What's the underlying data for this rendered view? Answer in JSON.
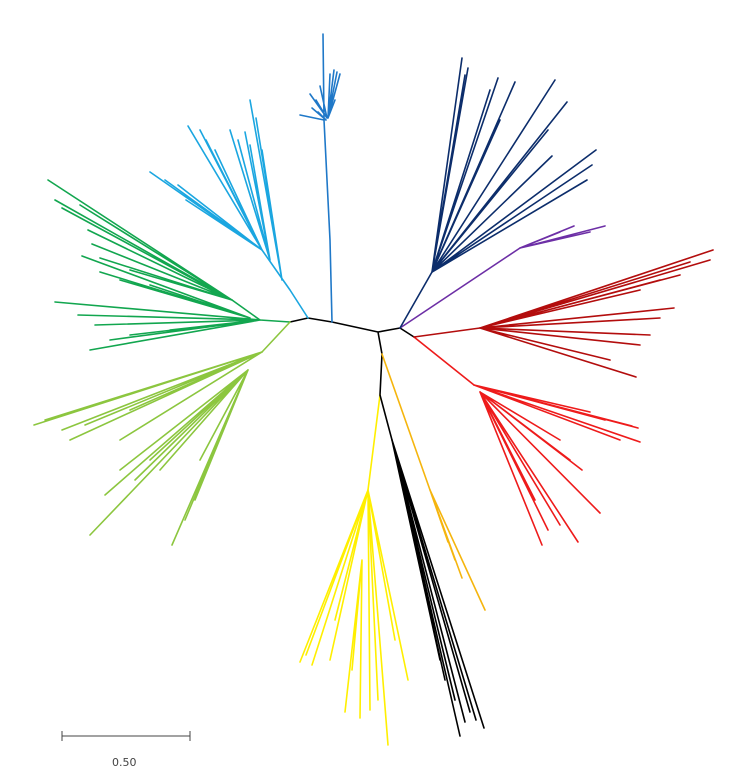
{
  "figure": {
    "type": "unrooted phylogenetic tree",
    "scale_bar": {
      "label": "0.50",
      "value": 0.5
    }
  },
  "clades": [
    {
      "id": "blue",
      "color": "#1f78c8"
    },
    {
      "id": "light-blue",
      "color": "#1ba6e0"
    },
    {
      "id": "green",
      "color": "#12a64f"
    },
    {
      "id": "light-green",
      "color": "#8cc63f"
    },
    {
      "id": "yellow",
      "color": "#ffef00"
    },
    {
      "id": "black",
      "color": "#000000"
    },
    {
      "id": "orange",
      "color": "#f5b50e"
    },
    {
      "id": "red",
      "color": "#ee1b1b"
    },
    {
      "id": "dark-red",
      "color": "#b30d0d"
    },
    {
      "id": "purple",
      "color": "#6d2fa6"
    },
    {
      "id": "navy",
      "color": "#0c2d6b"
    }
  ]
}
